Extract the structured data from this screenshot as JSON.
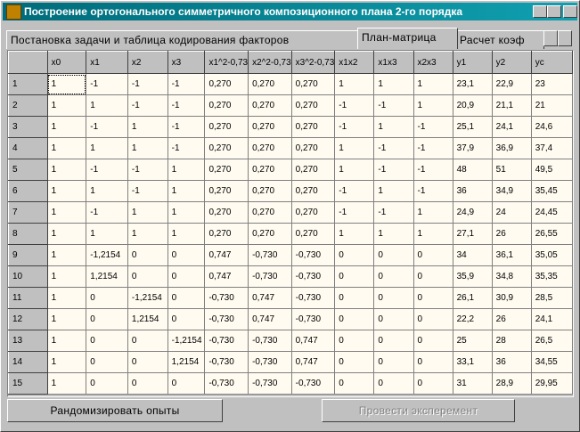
{
  "window": {
    "title": "Построение ортогонального симметричного композиционного плана 2-го порядка"
  },
  "tabs": [
    "Постановка задачи и таблица кодирования факторов",
    "План-матрица",
    "Расчет коэф"
  ],
  "table": {
    "header": [
      "x0",
      "x1",
      "x2",
      "x3",
      "x1^2-0,73",
      "x2^2-0,73",
      "x3^2-0,73",
      "x1x2",
      "x1x3",
      "x2x3",
      "y1",
      "y2",
      "yc"
    ],
    "rows": [
      [
        "1",
        "1",
        "-1",
        "-1",
        "-1",
        "0,270",
        "0,270",
        "0,270",
        "1",
        "1",
        "1",
        "23,1",
        "22,9",
        "23"
      ],
      [
        "2",
        "1",
        "1",
        "-1",
        "-1",
        "0,270",
        "0,270",
        "0,270",
        "-1",
        "-1",
        "1",
        "20,9",
        "21,1",
        "21"
      ],
      [
        "3",
        "1",
        "-1",
        "1",
        "-1",
        "0,270",
        "0,270",
        "0,270",
        "-1",
        "1",
        "-1",
        "25,1",
        "24,1",
        "24,6"
      ],
      [
        "4",
        "1",
        "1",
        "1",
        "-1",
        "0,270",
        "0,270",
        "0,270",
        "1",
        "-1",
        "-1",
        "37,9",
        "36,9",
        "37,4"
      ],
      [
        "5",
        "1",
        "-1",
        "-1",
        "1",
        "0,270",
        "0,270",
        "0,270",
        "1",
        "-1",
        "-1",
        "48",
        "51",
        "49,5"
      ],
      [
        "6",
        "1",
        "1",
        "-1",
        "1",
        "0,270",
        "0,270",
        "0,270",
        "-1",
        "1",
        "-1",
        "36",
        "34,9",
        "35,45"
      ],
      [
        "7",
        "1",
        "-1",
        "1",
        "1",
        "0,270",
        "0,270",
        "0,270",
        "-1",
        "-1",
        "1",
        "24,9",
        "24",
        "24,45"
      ],
      [
        "8",
        "1",
        "1",
        "1",
        "1",
        "0,270",
        "0,270",
        "0,270",
        "1",
        "1",
        "1",
        "27,1",
        "26",
        "26,55"
      ],
      [
        "9",
        "1",
        "-1,2154",
        "0",
        "0",
        "0,747",
        "-0,730",
        "-0,730",
        "0",
        "0",
        "0",
        "34",
        "36,1",
        "35,05"
      ],
      [
        "10",
        "1",
        "1,2154",
        "0",
        "0",
        "0,747",
        "-0,730",
        "-0,730",
        "0",
        "0",
        "0",
        "35,9",
        "34,8",
        "35,35"
      ],
      [
        "11",
        "1",
        "0",
        "-1,2154",
        "0",
        "-0,730",
        "0,747",
        "-0,730",
        "0",
        "0",
        "0",
        "26,1",
        "30,9",
        "28,5"
      ],
      [
        "12",
        "1",
        "0",
        "1,2154",
        "0",
        "-0,730",
        "0,747",
        "-0,730",
        "0",
        "0",
        "0",
        "22,2",
        "26",
        "24,1"
      ],
      [
        "13",
        "1",
        "0",
        "0",
        "-1,2154",
        "-0,730",
        "-0,730",
        "0,747",
        "0",
        "0",
        "0",
        "25",
        "28",
        "26,5"
      ],
      [
        "14",
        "1",
        "0",
        "0",
        "1,2154",
        "-0,730",
        "-0,730",
        "0,747",
        "0",
        "0",
        "0",
        "33,1",
        "36",
        "34,55"
      ],
      [
        "15",
        "1",
        "0",
        "0",
        "0",
        "-0,730",
        "-0,730",
        "-0,730",
        "0",
        "0",
        "0",
        "31",
        "28,9",
        "29,95"
      ]
    ]
  },
  "buttons": [
    "Рандомизировать опыты",
    "Провести эксперемент"
  ]
}
